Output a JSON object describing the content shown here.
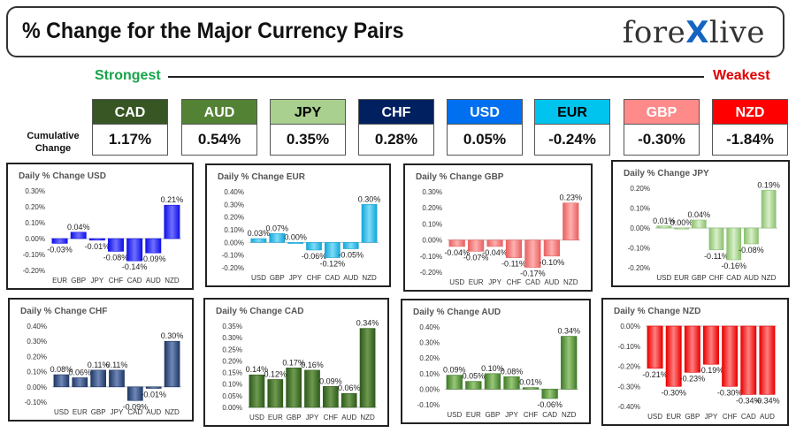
{
  "header": {
    "title": "% Change for the Major Currency Pairs",
    "logo_text": "forexlive",
    "logo_part1": "fore",
    "logo_x": "X",
    "logo_part2": "live"
  },
  "ranking": {
    "strongest_label": "Strongest",
    "weakest_label": "Weakest",
    "cumulative_label": "Cumulative Change",
    "currencies": [
      {
        "code": "CAD",
        "value": "1.17%",
        "color": "#375623",
        "text_color": "#ffffff"
      },
      {
        "code": "AUD",
        "value": "0.54%",
        "color": "#548235",
        "text_color": "#ffffff"
      },
      {
        "code": "JPY",
        "value": "0.35%",
        "color": "#a9d08e",
        "text_color": "#000000"
      },
      {
        "code": "CHF",
        "value": "0.28%",
        "color": "#002060",
        "text_color": "#ffffff"
      },
      {
        "code": "USD",
        "value": "0.05%",
        "color": "#0070f0",
        "text_color": "#ffffff"
      },
      {
        "code": "EUR",
        "value": "-0.24%",
        "color": "#00c4ee",
        "text_color": "#000000"
      },
      {
        "code": "GBP",
        "value": "-0.30%",
        "color": "#ff8a8a",
        "text_color": "#ffffff"
      },
      {
        "code": "NZD",
        "value": "-1.84%",
        "color": "#ff0000",
        "text_color": "#ffffff"
      }
    ]
  },
  "chart_data": [
    {
      "type": "bar",
      "title": "Daily % Change USD",
      "categories": [
        "EUR",
        "GBP",
        "JPY",
        "CHF",
        "CAD",
        "AUD",
        "NZD"
      ],
      "values": [
        -0.03,
        0.04,
        -0.01,
        -0.08,
        -0.14,
        -0.09,
        0.21
      ],
      "labels": [
        "-0.03%",
        "0.04%",
        "-0.01%",
        "-0.08%",
        "-0.14%",
        "-0.09%",
        "0.21%"
      ],
      "ylim": [
        -0.2,
        0.3
      ],
      "yticks": [
        -0.2,
        -0.1,
        0,
        0.1,
        0.2,
        0.3
      ],
      "ytick_labels": [
        "-0.20%",
        "-0.10%",
        "0.00%",
        "0.10%",
        "0.20%",
        "0.30%"
      ],
      "color": "#1010e8",
      "color_light": "#7070ff"
    },
    {
      "type": "bar",
      "title": "Daily % Change EUR",
      "categories": [
        "USD",
        "GBP",
        "JPY",
        "CHF",
        "CAD",
        "AUD",
        "NZD"
      ],
      "values": [
        0.03,
        0.07,
        0.0,
        -0.06,
        -0.12,
        -0.05,
        0.3
      ],
      "labels": [
        "0.03%",
        "0.07%",
        "0.00%",
        "-0.06%",
        "-0.12%",
        "-0.05%",
        "0.30%"
      ],
      "ylim": [
        -0.2,
        0.4
      ],
      "yticks": [
        -0.2,
        -0.1,
        0,
        0.1,
        0.2,
        0.3,
        0.4
      ],
      "ytick_labels": [
        "-0.20%",
        "-0.10%",
        "0.00%",
        "0.10%",
        "0.20%",
        "0.30%",
        "0.40%"
      ],
      "color": "#14a6d8",
      "color_light": "#7fdcf8"
    },
    {
      "type": "bar",
      "title": "Daily % Change GBP",
      "categories": [
        "USD",
        "EUR",
        "JPY",
        "CHF",
        "CAD",
        "AUD",
        "NZD"
      ],
      "values": [
        -0.04,
        -0.07,
        -0.04,
        -0.11,
        -0.17,
        -0.1,
        0.23
      ],
      "labels": [
        "-0.04%",
        "-0.07%",
        "-0.04%",
        "-0.11%",
        "-0.17%",
        "-0.10%",
        "0.23%"
      ],
      "ylim": [
        -0.2,
        0.3
      ],
      "yticks": [
        -0.2,
        -0.1,
        0,
        0.1,
        0.2,
        0.3
      ],
      "ytick_labels": [
        "-0.20%",
        "-0.10%",
        "0.00%",
        "0.10%",
        "0.20%",
        "0.30%"
      ],
      "color": "#e86060",
      "color_light": "#ffb0b0"
    },
    {
      "type": "bar",
      "title": "Daily % Change JPY",
      "categories": [
        "USD",
        "EUR",
        "GBP",
        "CHF",
        "CAD",
        "AUD",
        "NZD"
      ],
      "values": [
        0.01,
        0.0,
        0.04,
        -0.11,
        -0.16,
        -0.08,
        0.19
      ],
      "labels": [
        "0.01%",
        "0.00%",
        "0.04%",
        "-0.11%",
        "-0.16%",
        "-0.08%",
        "0.19%"
      ],
      "ylim": [
        -0.2,
        0.2
      ],
      "yticks": [
        -0.2,
        -0.1,
        0,
        0.1,
        0.2
      ],
      "ytick_labels": [
        "-0.20%",
        "-0.10%",
        "0.00%",
        "0.10%",
        "0.20%"
      ],
      "color": "#8cc070",
      "color_light": "#d8f0c8"
    },
    {
      "type": "bar",
      "title": "Daily % Change CHF",
      "categories": [
        "USD",
        "EUR",
        "GBP",
        "JPY",
        "CAD",
        "AUD",
        "NZD"
      ],
      "values": [
        0.08,
        0.06,
        0.11,
        0.11,
        -0.09,
        -0.01,
        0.3
      ],
      "labels": [
        "0.08%",
        "0.06%",
        "0.11%",
        "0.11%",
        "-0.09%",
        "-0.01%",
        "0.30%"
      ],
      "ylim": [
        -0.1,
        0.4
      ],
      "yticks": [
        -0.1,
        0,
        0.1,
        0.2,
        0.3,
        0.4
      ],
      "ytick_labels": [
        "-0.10%",
        "0.00%",
        "0.10%",
        "0.20%",
        "0.30%",
        "0.40%"
      ],
      "color": "#1f3864",
      "color_light": "#6f88b8"
    },
    {
      "type": "bar",
      "title": "Daily % Change CAD",
      "categories": [
        "USD",
        "EUR",
        "GBP",
        "JPY",
        "CHF",
        "AUD",
        "NZD"
      ],
      "values": [
        0.14,
        0.12,
        0.17,
        0.16,
        0.09,
        0.06,
        0.34
      ],
      "labels": [
        "0.14%",
        "0.12%",
        "0.17%",
        "0.16%",
        "0.09%",
        "0.06%",
        "0.34%"
      ],
      "ylim": [
        0,
        0.35
      ],
      "yticks": [
        0,
        0.05,
        0.1,
        0.15,
        0.2,
        0.25,
        0.3,
        0.35
      ],
      "ytick_labels": [
        "0.00%",
        "0.05%",
        "0.10%",
        "0.15%",
        "0.20%",
        "0.25%",
        "0.30%",
        "0.35%"
      ],
      "color": "#2e5a1c",
      "color_light": "#6e9a50"
    },
    {
      "type": "bar",
      "title": "Daily % Change AUD",
      "categories": [
        "USD",
        "EUR",
        "GBP",
        "JPY",
        "CHF",
        "CAD",
        "NZD"
      ],
      "values": [
        0.09,
        0.05,
        0.1,
        0.08,
        0.01,
        -0.06,
        0.34
      ],
      "labels": [
        "0.09%",
        "0.05%",
        "0.10%",
        "0.08%",
        "0.01%",
        "-0.06%",
        "0.34%"
      ],
      "ylim": [
        -0.1,
        0.4
      ],
      "yticks": [
        -0.1,
        0,
        0.1,
        0.2,
        0.3,
        0.4
      ],
      "ytick_labels": [
        "-0.10%",
        "0.00%",
        "0.10%",
        "0.20%",
        "0.30%",
        "0.40%"
      ],
      "color": "#3f7a28",
      "color_light": "#98c878"
    },
    {
      "type": "bar",
      "title": "Daily % Change NZD",
      "categories": [
        "USD",
        "EUR",
        "GBP",
        "JPY",
        "CHF",
        "CAD",
        "AUD"
      ],
      "values": [
        -0.21,
        -0.3,
        -0.23,
        -0.19,
        -0.3,
        -0.34,
        -0.34
      ],
      "labels": [
        "-0.21%",
        "-0.30%",
        "-0.23%",
        "-0.19%",
        "-0.30%",
        "-0.34%",
        "-0.34%"
      ],
      "ylim": [
        -0.4,
        0
      ],
      "yticks": [
        -0.4,
        -0.3,
        -0.2,
        -0.1,
        0
      ],
      "ytick_labels": [
        "-0.40%",
        "-0.30%",
        "-0.20%",
        "-0.10%",
        "0.00%"
      ],
      "color": "#e80000",
      "color_light": "#ff8080"
    }
  ]
}
